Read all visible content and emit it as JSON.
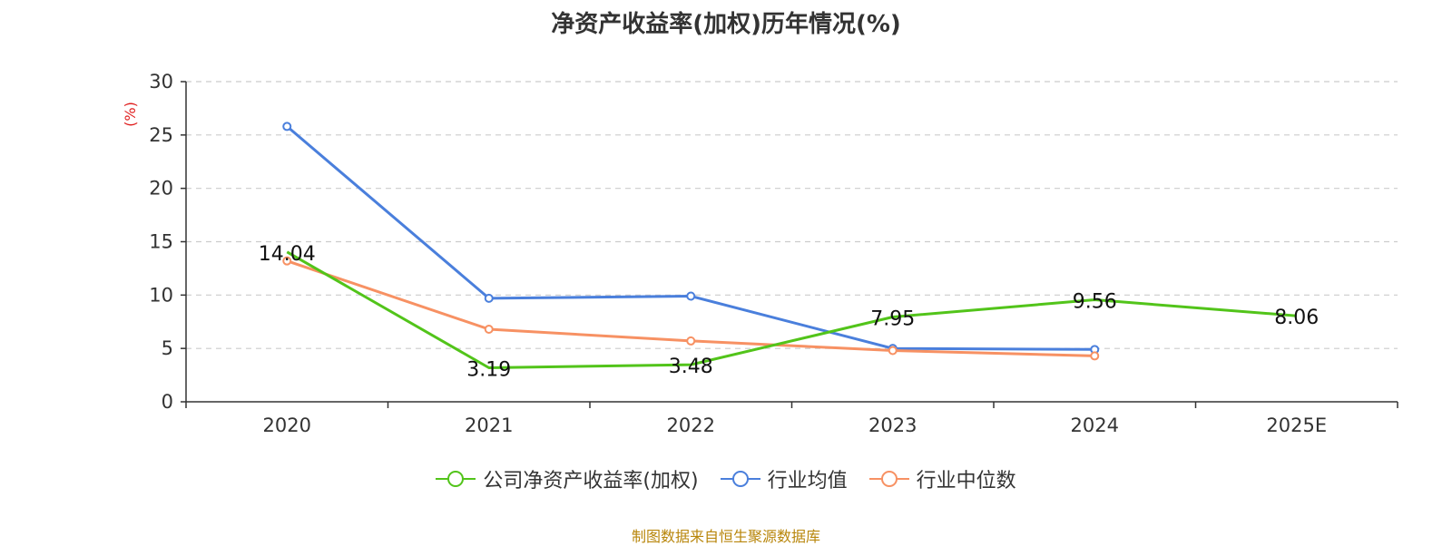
{
  "chart_data": {
    "type": "line",
    "title": "净资产收益率(加权)历年情况(%)",
    "ylabel": "(%)",
    "xlabel": "",
    "categories": [
      "2020",
      "2021",
      "2022",
      "2023",
      "2024",
      "2025E"
    ],
    "ylim": [
      0,
      30
    ],
    "yticks": [
      0,
      5,
      10,
      15,
      20,
      25,
      30
    ],
    "grid": true,
    "legend_position": "bottom",
    "series": [
      {
        "name": "公司净资产收益率(加权)",
        "color": "#52c41a",
        "values": [
          14.04,
          3.19,
          3.48,
          7.95,
          9.56,
          8.06
        ],
        "labels": [
          "14.04",
          "3.19",
          "3.48",
          "7.95",
          "9.56",
          "8.06"
        ],
        "show_labels": true,
        "show_points": false
      },
      {
        "name": "行业均值",
        "color": "#4a7fdc",
        "values": [
          25.8,
          9.7,
          9.9,
          5.0,
          4.9,
          null
        ],
        "show_labels": false,
        "show_points": true
      },
      {
        "name": "行业中位数",
        "color": "#f79163",
        "values": [
          13.2,
          6.8,
          5.7,
          4.8,
          4.3,
          null
        ],
        "show_labels": false,
        "show_points": true
      }
    ]
  },
  "footer": {
    "source": "制图数据来自恒生聚源数据库"
  }
}
